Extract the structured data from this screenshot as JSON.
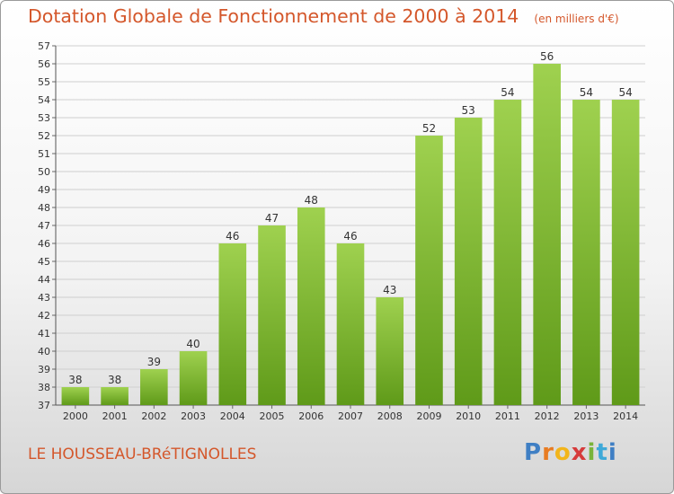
{
  "header": {
    "title": "Dotation Globale de Fonctionnement de 2000 à 2014",
    "subtitle": "(en milliers d'€)"
  },
  "footer": {
    "commune": "LE HOUSSEAU-BRéTIGNOLLES",
    "logo_text": "Proxiti"
  },
  "colors": {
    "title": "#d4572b",
    "bar_top": "#9fd14f",
    "bar_bottom": "#5f9a19",
    "grid": "#cfcfcf"
  },
  "chart_data": {
    "type": "bar",
    "title": "Dotation Globale de Fonctionnement de 2000 à 2014",
    "subtitle": "(en milliers d'€)",
    "xlabel": "",
    "ylabel": "",
    "categories": [
      "2000",
      "2001",
      "2002",
      "2003",
      "2004",
      "2005",
      "2006",
      "2007",
      "2008",
      "2009",
      "2010",
      "2011",
      "2012",
      "2013",
      "2014"
    ],
    "values": [
      38,
      38,
      39,
      40,
      46,
      47,
      48,
      46,
      43,
      52,
      53,
      54,
      56,
      54,
      54
    ],
    "ylim": [
      37,
      57
    ],
    "yticks": [
      37,
      38,
      39,
      40,
      41,
      42,
      43,
      44,
      45,
      46,
      47,
      48,
      49,
      50,
      51,
      52,
      53,
      54,
      55,
      56,
      57
    ],
    "grid": true,
    "legend": "none"
  }
}
